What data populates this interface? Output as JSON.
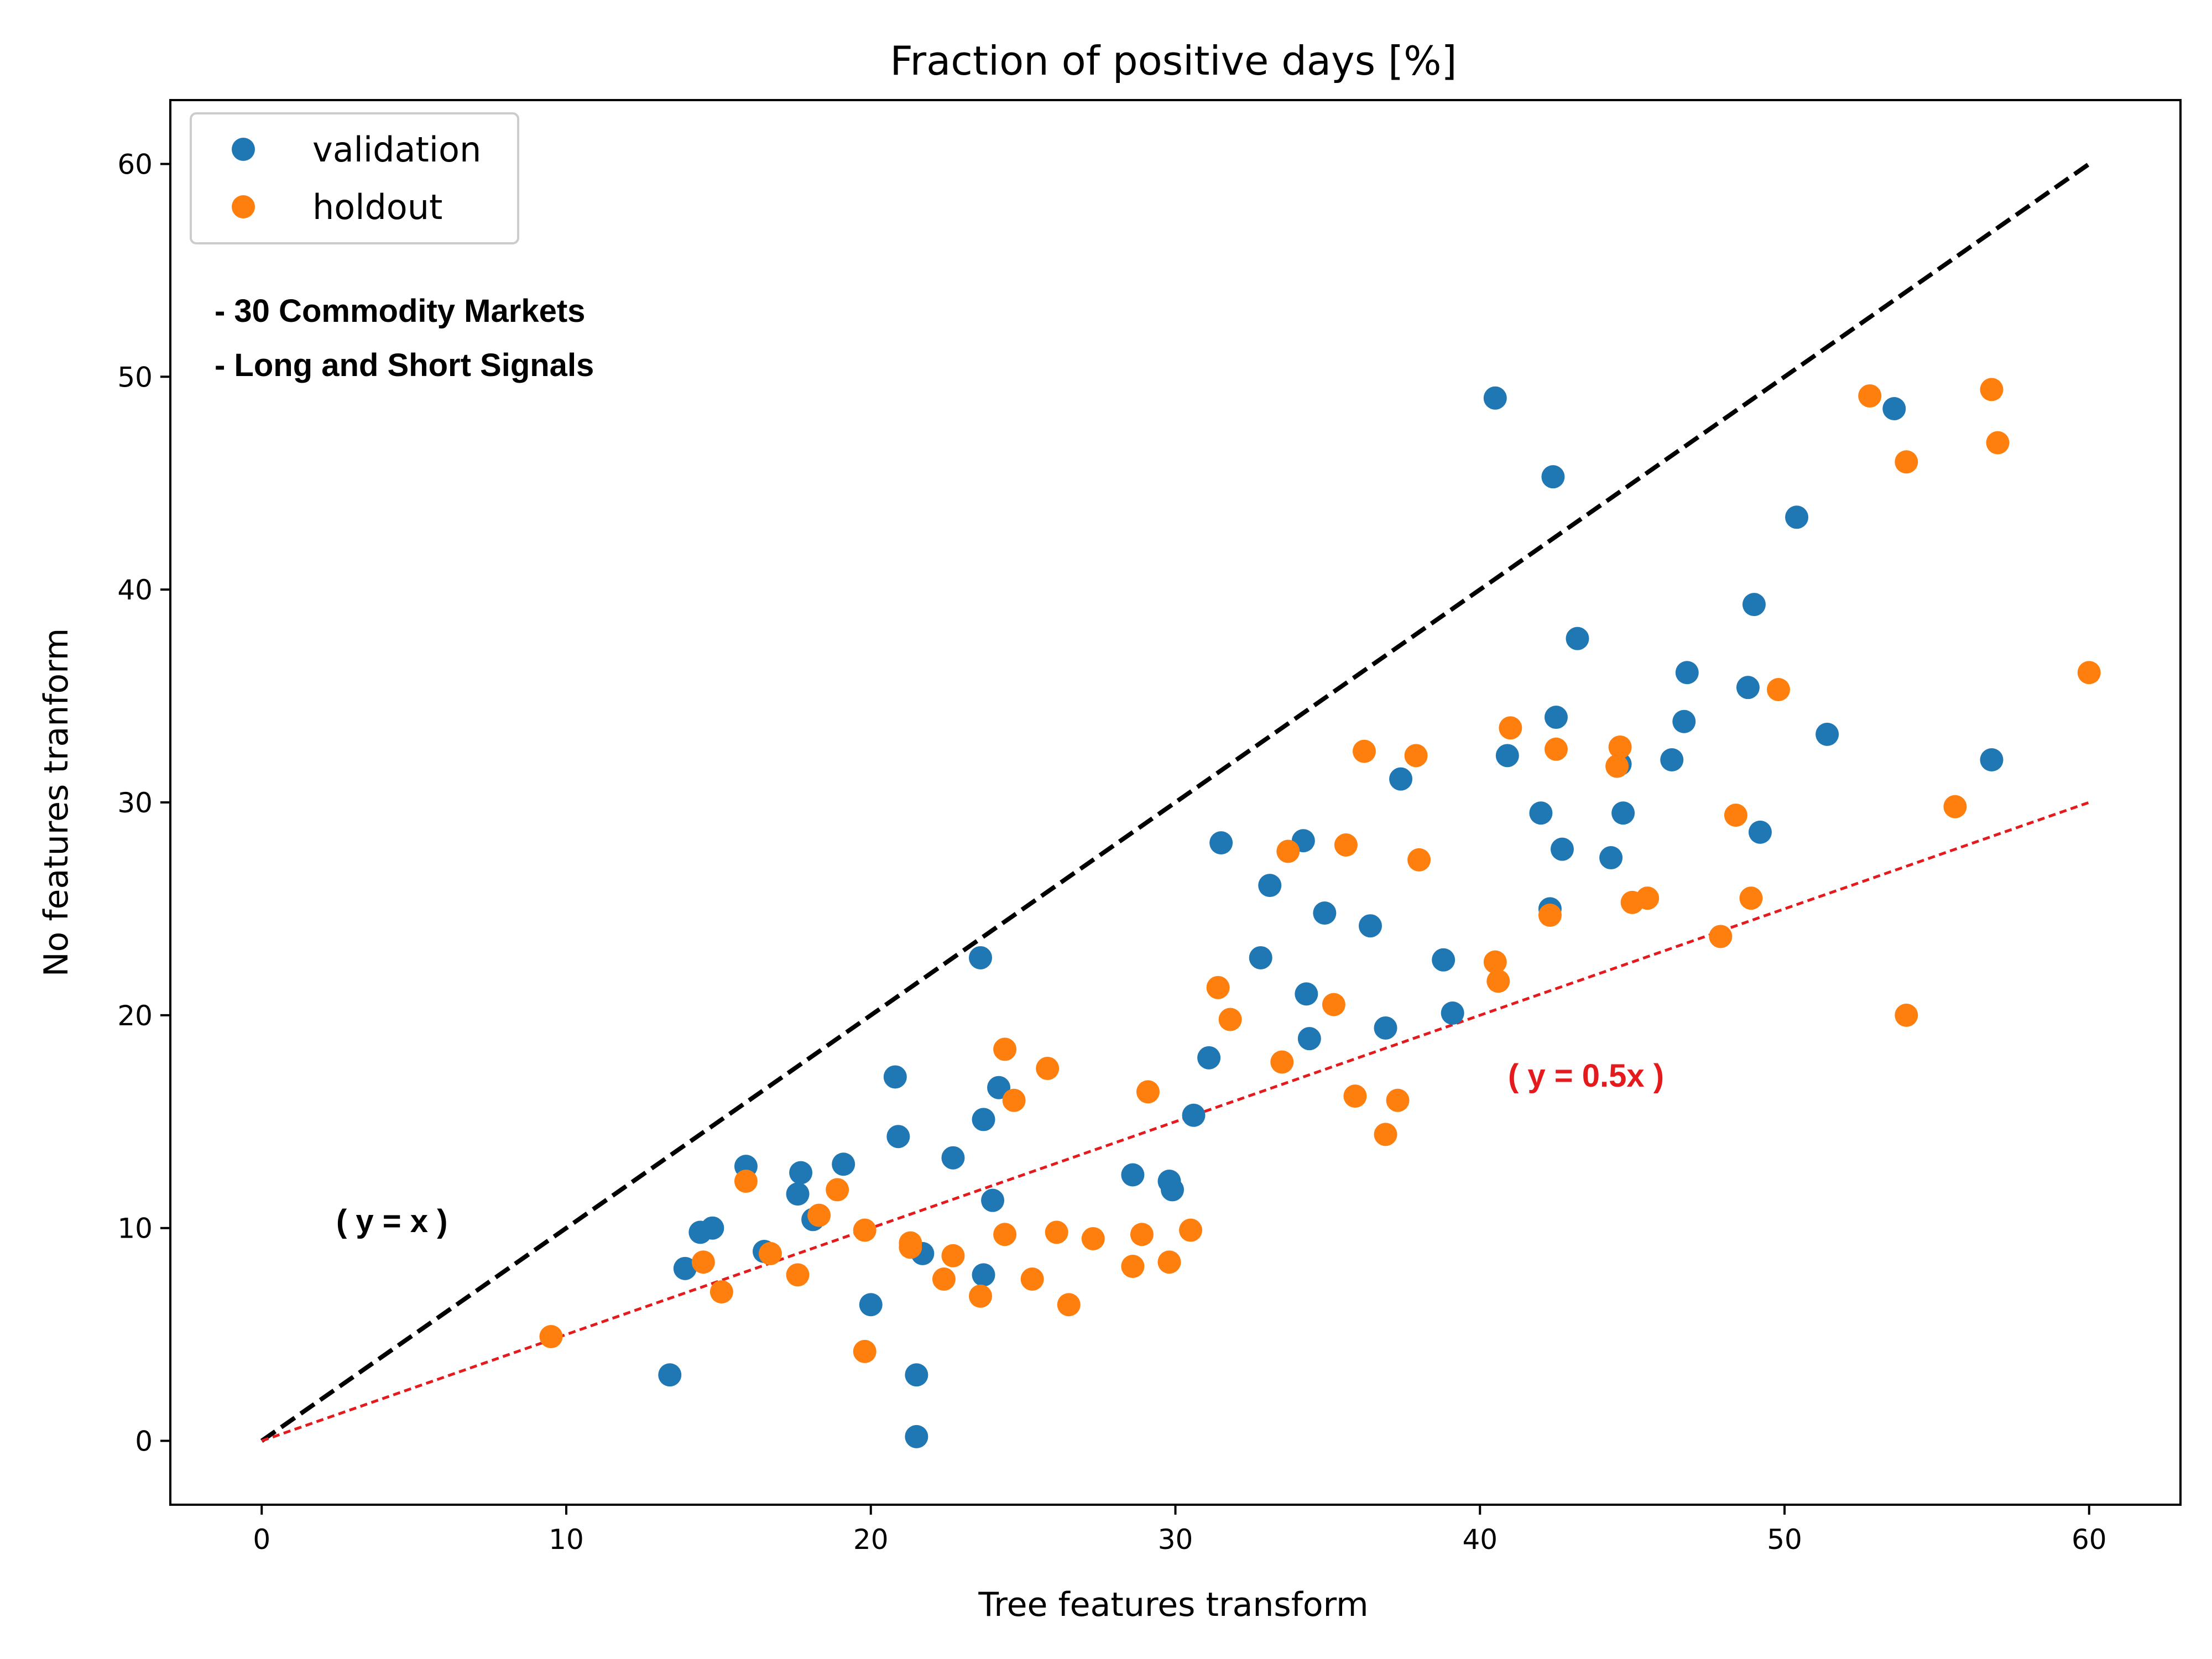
{
  "chart_data": {
    "type": "scatter",
    "title": "Fraction of positive days [%]",
    "xlabel": "Tree features transform",
    "ylabel": "No features tranform",
    "xlim": [
      -3,
      63
    ],
    "ylim": [
      -3,
      63
    ],
    "xticks": [
      0,
      10,
      20,
      30,
      40,
      50,
      60
    ],
    "yticks": [
      0,
      10,
      20,
      30,
      40,
      50,
      60
    ],
    "grid": false,
    "legend_position": "top-left",
    "series": [
      {
        "name": "validation",
        "color": "#1f77b4",
        "points": [
          [
            13.4,
            3.1
          ],
          [
            13.9,
            8.1
          ],
          [
            14.4,
            9.8
          ],
          [
            14.8,
            10.0
          ],
          [
            15.9,
            12.9
          ],
          [
            16.5,
            8.9
          ],
          [
            17.6,
            11.6
          ],
          [
            17.7,
            12.6
          ],
          [
            18.1,
            10.4
          ],
          [
            19.1,
            13.0
          ],
          [
            20.0,
            6.4
          ],
          [
            20.8,
            17.1
          ],
          [
            20.9,
            14.3
          ],
          [
            21.5,
            3.1
          ],
          [
            21.5,
            0.2
          ],
          [
            21.7,
            8.8
          ],
          [
            22.7,
            13.3
          ],
          [
            23.6,
            22.7
          ],
          [
            23.7,
            7.8
          ],
          [
            23.7,
            15.1
          ],
          [
            24.0,
            11.3
          ],
          [
            24.2,
            16.6
          ],
          [
            28.6,
            12.5
          ],
          [
            29.8,
            12.2
          ],
          [
            29.9,
            11.8
          ],
          [
            30.6,
            15.3
          ],
          [
            31.1,
            18.0
          ],
          [
            31.5,
            28.1
          ],
          [
            32.8,
            22.7
          ],
          [
            33.1,
            26.1
          ],
          [
            34.2,
            28.2
          ],
          [
            34.3,
            21.0
          ],
          [
            34.4,
            18.9
          ],
          [
            34.9,
            24.8
          ],
          [
            36.4,
            24.2
          ],
          [
            36.9,
            19.4
          ],
          [
            37.4,
            31.1
          ],
          [
            38.8,
            22.6
          ],
          [
            39.1,
            20.1
          ],
          [
            40.5,
            49.0
          ],
          [
            40.9,
            32.2
          ],
          [
            42.0,
            29.5
          ],
          [
            42.3,
            25.0
          ],
          [
            42.4,
            45.3
          ],
          [
            42.5,
            34.0
          ],
          [
            42.7,
            27.8
          ],
          [
            43.2,
            37.7
          ],
          [
            44.3,
            27.4
          ],
          [
            44.6,
            31.8
          ],
          [
            44.7,
            29.5
          ],
          [
            46.3,
            32.0
          ],
          [
            46.7,
            33.8
          ],
          [
            46.8,
            36.1
          ],
          [
            48.8,
            35.4
          ],
          [
            49.0,
            39.3
          ],
          [
            49.2,
            28.6
          ],
          [
            50.4,
            43.4
          ],
          [
            51.4,
            33.2
          ],
          [
            53.6,
            48.5
          ],
          [
            56.8,
            32.0
          ]
        ]
      },
      {
        "name": "holdout",
        "color": "#ff7f0e",
        "points": [
          [
            9.5,
            4.9
          ],
          [
            14.5,
            8.4
          ],
          [
            15.1,
            7.0
          ],
          [
            15.9,
            12.2
          ],
          [
            16.7,
            8.8
          ],
          [
            17.6,
            7.8
          ],
          [
            18.3,
            10.6
          ],
          [
            18.9,
            11.8
          ],
          [
            19.8,
            9.9
          ],
          [
            19.8,
            4.2
          ],
          [
            21.3,
            9.1
          ],
          [
            21.3,
            9.3
          ],
          [
            22.4,
            7.6
          ],
          [
            22.7,
            8.7
          ],
          [
            23.6,
            6.8
          ],
          [
            24.4,
            9.7
          ],
          [
            24.4,
            18.4
          ],
          [
            24.7,
            16.0
          ],
          [
            25.3,
            7.6
          ],
          [
            25.8,
            17.5
          ],
          [
            26.1,
            9.8
          ],
          [
            26.5,
            6.4
          ],
          [
            27.3,
            9.5
          ],
          [
            28.6,
            8.2
          ],
          [
            28.9,
            9.7
          ],
          [
            29.1,
            16.4
          ],
          [
            29.8,
            8.4
          ],
          [
            30.5,
            9.9
          ],
          [
            31.4,
            21.3
          ],
          [
            31.8,
            19.8
          ],
          [
            33.5,
            17.8
          ],
          [
            33.7,
            27.7
          ],
          [
            35.2,
            20.5
          ],
          [
            35.6,
            28.0
          ],
          [
            35.9,
            16.2
          ],
          [
            36.2,
            32.4
          ],
          [
            36.9,
            14.4
          ],
          [
            37.3,
            16.0
          ],
          [
            37.9,
            32.2
          ],
          [
            38.0,
            27.3
          ],
          [
            40.5,
            22.5
          ],
          [
            40.6,
            21.6
          ],
          [
            41.0,
            33.5
          ],
          [
            42.3,
            24.7
          ],
          [
            42.5,
            32.5
          ],
          [
            44.5,
            31.7
          ],
          [
            44.6,
            32.6
          ],
          [
            45.0,
            25.3
          ],
          [
            45.5,
            25.5
          ],
          [
            47.9,
            23.7
          ],
          [
            48.4,
            29.4
          ],
          [
            48.9,
            25.5
          ],
          [
            49.8,
            35.3
          ],
          [
            52.8,
            49.1
          ],
          [
            54.0,
            20.0
          ],
          [
            54.0,
            46.0
          ],
          [
            55.6,
            29.8
          ],
          [
            56.8,
            49.4
          ],
          [
            57.0,
            46.9
          ],
          [
            60.0,
            36.1
          ]
        ]
      }
    ],
    "reference_lines": [
      {
        "label": "( y = x )",
        "slope": 1.0,
        "x_range": [
          0,
          60
        ],
        "color": "#000000",
        "style": "dashed"
      },
      {
        "label": "( y = 0.5x )",
        "slope": 0.5,
        "x_range": [
          0,
          60
        ],
        "color": "#e41a1c",
        "style": "dotted"
      }
    ],
    "annotations": {
      "line1": "- 30 Commodity Markets",
      "line2": "- Long and Short Signals",
      "yx_label": "( y = x )",
      "yhalf_label": "( y = 0.5x )"
    }
  }
}
